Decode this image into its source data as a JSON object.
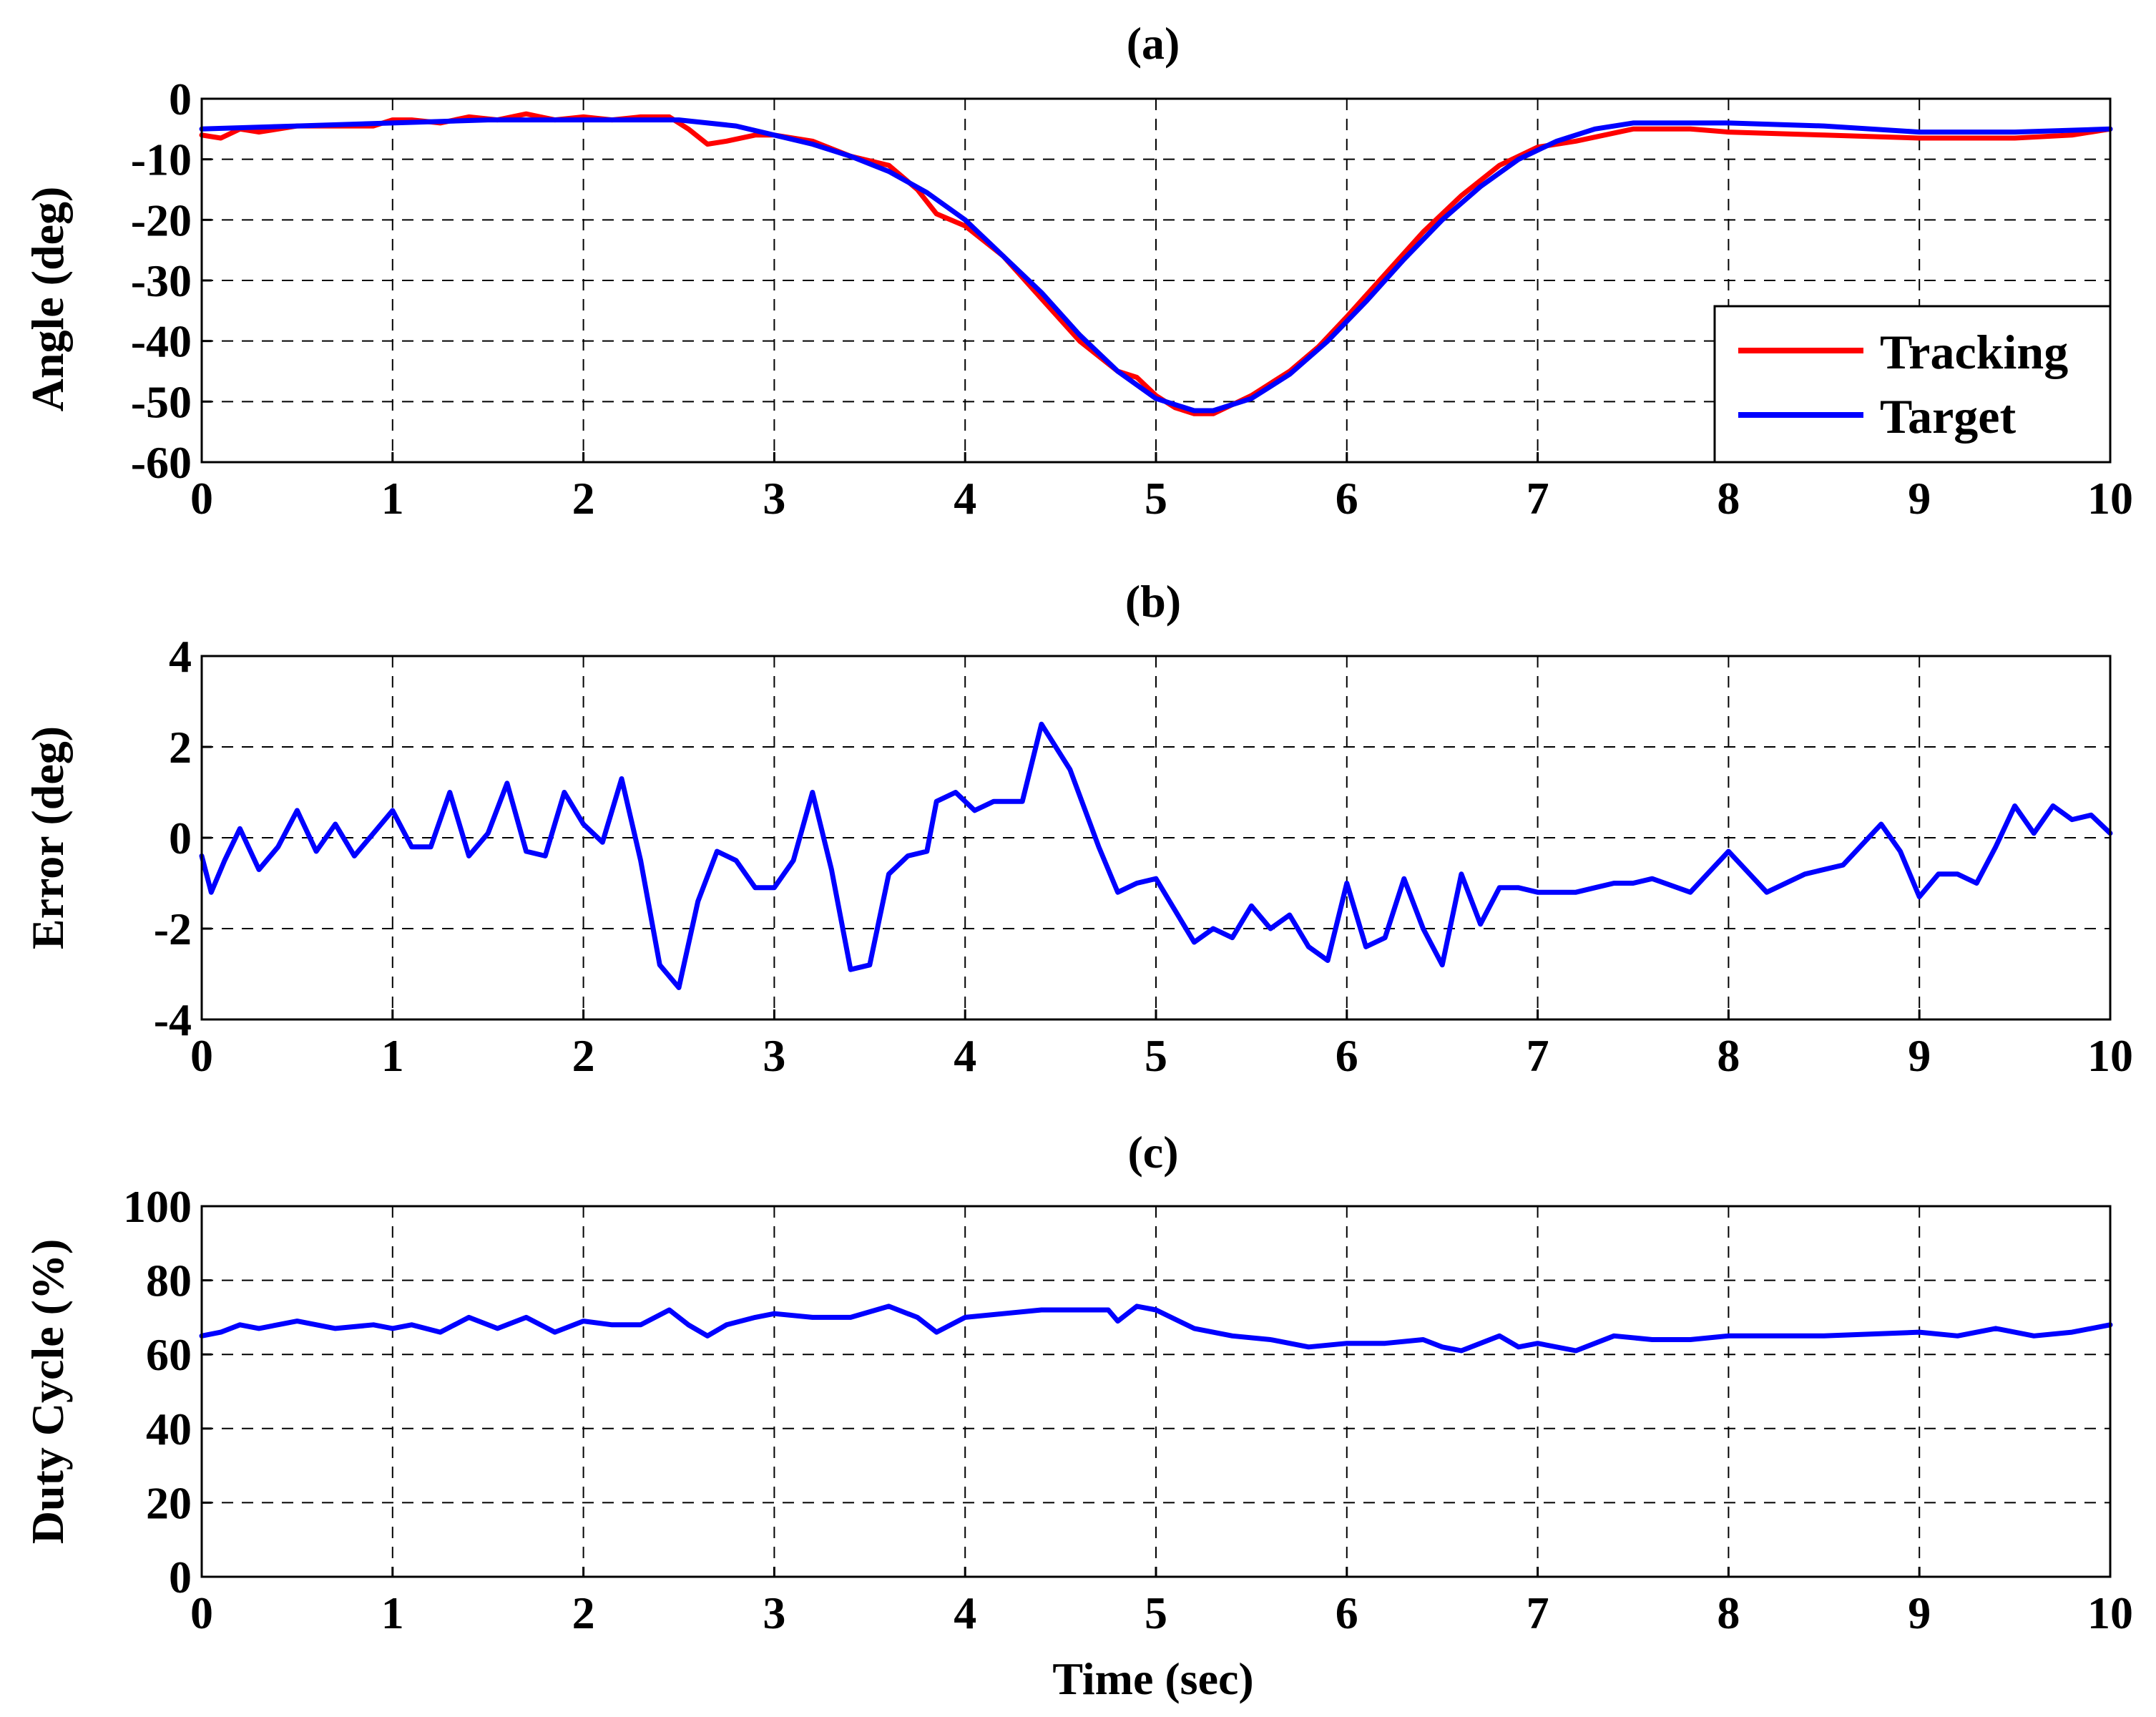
{
  "colors": {
    "tracking": "#ff0000",
    "target": "#0000ff",
    "axis": "#000000",
    "background": "#ffffff"
  },
  "chart_data": [
    {
      "type": "line",
      "title": "(a)",
      "xlabel": "",
      "ylabel": "Angle (deg)",
      "xlim": [
        0,
        10
      ],
      "ylim": [
        -60,
        0
      ],
      "xticks": [
        0,
        1,
        2,
        3,
        4,
        5,
        6,
        7,
        8,
        9,
        10
      ],
      "yticks": [
        0,
        -10,
        -20,
        -30,
        -40,
        -50,
        -60
      ],
      "grid": true,
      "legend": {
        "position": "bottom-right",
        "entries": [
          "Tracking",
          "Target"
        ]
      },
      "series": [
        {
          "name": "Tracking",
          "color": "#ff0000",
          "x": [
            0,
            0.1,
            0.2,
            0.3,
            0.5,
            0.7,
            0.9,
            1.0,
            1.1,
            1.25,
            1.4,
            1.55,
            1.7,
            1.85,
            2.0,
            2.15,
            2.3,
            2.45,
            2.55,
            2.65,
            2.75,
            2.9,
            3.0,
            3.2,
            3.4,
            3.6,
            3.75,
            3.85,
            4.0,
            4.2,
            4.4,
            4.6,
            4.8,
            4.9,
            5.0,
            5.1,
            5.2,
            5.3,
            5.4,
            5.5,
            5.6,
            5.7,
            5.85,
            6.0,
            6.2,
            6.4,
            6.6,
            6.8,
            7.0,
            7.2,
            7.5,
            7.8,
            8.0,
            8.5,
            9.0,
            9.5,
            9.8,
            10.0
          ],
          "y": [
            -6,
            -6.5,
            -5,
            -5.5,
            -4.5,
            -4.5,
            -4.5,
            -3.5,
            -3.5,
            -4,
            -3,
            -3.5,
            -2.5,
            -3.5,
            -3,
            -3.5,
            -3,
            -3,
            -5,
            -7.5,
            -7,
            -6,
            -6,
            -7,
            -9.5,
            -11,
            -15,
            -19,
            -21,
            -26,
            -33,
            -40,
            -45,
            -46,
            -49,
            -51,
            -52,
            -52,
            -50.5,
            -49,
            -47,
            -45,
            -41,
            -36,
            -29,
            -22,
            -16,
            -11,
            -8,
            -7,
            -5,
            -5,
            -5.5,
            -6,
            -6.5,
            -6.5,
            -6,
            -5
          ]
        },
        {
          "name": "Target",
          "color": "#0000ff",
          "x": [
            0,
            0.5,
            1.0,
            1.5,
            2.0,
            2.5,
            2.8,
            3.0,
            3.2,
            3.4,
            3.6,
            3.8,
            4.0,
            4.2,
            4.4,
            4.6,
            4.8,
            5.0,
            5.2,
            5.3,
            5.5,
            5.7,
            5.9,
            6.1,
            6.3,
            6.5,
            6.7,
            6.9,
            7.1,
            7.3,
            7.5,
            8.0,
            8.5,
            9.0,
            9.5,
            10.0
          ],
          "y": [
            -5,
            -4.5,
            -4,
            -3.5,
            -3.5,
            -3.5,
            -4.5,
            -6,
            -7.5,
            -9.5,
            -12,
            -15.5,
            -20,
            -26,
            -32,
            -39,
            -45,
            -49.5,
            -51.5,
            -51.5,
            -49.5,
            -45.5,
            -40,
            -33.5,
            -26.5,
            -20,
            -14.5,
            -10,
            -7,
            -5,
            -4,
            -4,
            -4.5,
            -5.5,
            -5.5,
            -5
          ]
        }
      ]
    },
    {
      "type": "line",
      "title": "(b)",
      "xlabel": "",
      "ylabel": "Error (deg)",
      "xlim": [
        0,
        10
      ],
      "ylim": [
        -4,
        4
      ],
      "xticks": [
        0,
        1,
        2,
        3,
        4,
        5,
        6,
        7,
        8,
        9,
        10
      ],
      "yticks": [
        4,
        2,
        0,
        -2,
        -4
      ],
      "grid": true,
      "series": [
        {
          "name": "Error",
          "color": "#0000ff",
          "x": [
            0,
            0.05,
            0.12,
            0.2,
            0.3,
            0.4,
            0.5,
            0.6,
            0.7,
            0.8,
            0.9,
            1.0,
            1.1,
            1.2,
            1.3,
            1.4,
            1.5,
            1.6,
            1.7,
            1.8,
            1.9,
            2.0,
            2.1,
            2.2,
            2.3,
            2.4,
            2.5,
            2.6,
            2.7,
            2.8,
            2.9,
            3.0,
            3.1,
            3.2,
            3.3,
            3.4,
            3.5,
            3.6,
            3.7,
            3.8,
            3.85,
            3.95,
            4.05,
            4.15,
            4.3,
            4.4,
            4.55,
            4.7,
            4.8,
            4.9,
            5.0,
            5.1,
            5.2,
            5.3,
            5.4,
            5.5,
            5.6,
            5.7,
            5.8,
            5.9,
            6.0,
            6.1,
            6.2,
            6.3,
            6.4,
            6.5,
            6.6,
            6.7,
            6.8,
            6.9,
            7.0,
            7.1,
            7.2,
            7.3,
            7.4,
            7.5,
            7.6,
            7.8,
            8.0,
            8.2,
            8.4,
            8.6,
            8.8,
            8.9,
            9.0,
            9.1,
            9.2,
            9.3,
            9.4,
            9.5,
            9.6,
            9.7,
            9.8,
            9.9,
            10.0
          ],
          "y": [
            -0.4,
            -1.2,
            -0.5,
            0.2,
            -0.7,
            -0.2,
            0.6,
            -0.3,
            0.3,
            -0.4,
            0.1,
            0.6,
            -0.2,
            -0.2,
            1.0,
            -0.4,
            0.1,
            1.2,
            -0.3,
            -0.4,
            1.0,
            0.3,
            -0.1,
            1.3,
            -0.5,
            -2.8,
            -3.3,
            -1.4,
            -0.3,
            -0.5,
            -1.1,
            -1.1,
            -0.5,
            1.0,
            -0.7,
            -2.9,
            -2.8,
            -0.8,
            -0.4,
            -0.3,
            0.8,
            1.0,
            0.6,
            0.8,
            0.8,
            2.5,
            1.5,
            -0.2,
            -1.2,
            -1.0,
            -0.9,
            -1.6,
            -2.3,
            -2.0,
            -2.2,
            -1.5,
            -2.0,
            -1.7,
            -2.4,
            -2.7,
            -1.0,
            -2.4,
            -2.2,
            -0.9,
            -2.0,
            -2.8,
            -0.8,
            -1.9,
            -1.1,
            -1.1,
            -1.2,
            -1.2,
            -1.2,
            -1.1,
            -1.0,
            -1.0,
            -0.9,
            -1.2,
            -0.3,
            -1.2,
            -0.8,
            -0.6,
            0.3,
            -0.3,
            -1.3,
            -0.8,
            -0.8,
            -1.0,
            -0.2,
            0.7,
            0.1,
            0.7,
            0.4,
            0.5,
            0.1
          ]
        }
      ]
    },
    {
      "type": "line",
      "title": "(c)",
      "xlabel": "Time (sec)",
      "ylabel": "Duty Cycle (%)",
      "xlim": [
        0,
        10
      ],
      "ylim": [
        0,
        100
      ],
      "xticks": [
        0,
        1,
        2,
        3,
        4,
        5,
        6,
        7,
        8,
        9,
        10
      ],
      "yticks": [
        100,
        80,
        60,
        40,
        20,
        0
      ],
      "grid": true,
      "series": [
        {
          "name": "Duty Cycle",
          "color": "#0000ff",
          "x": [
            0,
            0.1,
            0.2,
            0.3,
            0.5,
            0.7,
            0.9,
            1.0,
            1.1,
            1.25,
            1.4,
            1.55,
            1.7,
            1.85,
            2.0,
            2.15,
            2.3,
            2.45,
            2.55,
            2.65,
            2.75,
            2.9,
            3.0,
            3.2,
            3.4,
            3.6,
            3.75,
            3.85,
            4.0,
            4.2,
            4.4,
            4.6,
            4.75,
            4.8,
            4.9,
            5.0,
            5.2,
            5.4,
            5.6,
            5.8,
            6.0,
            6.2,
            6.4,
            6.5,
            6.6,
            6.8,
            6.9,
            7.0,
            7.2,
            7.4,
            7.6,
            7.8,
            8.0,
            8.5,
            9.0,
            9.2,
            9.4,
            9.6,
            9.8,
            10.0
          ],
          "y": [
            65,
            66,
            68,
            67,
            69,
            67,
            68,
            67,
            68,
            66,
            70,
            67,
            70,
            66,
            69,
            68,
            68,
            72,
            68,
            65,
            68,
            70,
            71,
            70,
            70,
            73,
            70,
            66,
            70,
            71,
            72,
            72,
            72,
            69,
            73,
            72,
            67,
            65,
            64,
            62,
            63,
            63,
            64,
            62,
            61,
            65,
            62,
            63,
            61,
            65,
            64,
            64,
            65,
            65,
            66,
            65,
            67,
            65,
            66,
            68
          ]
        }
      ]
    }
  ]
}
